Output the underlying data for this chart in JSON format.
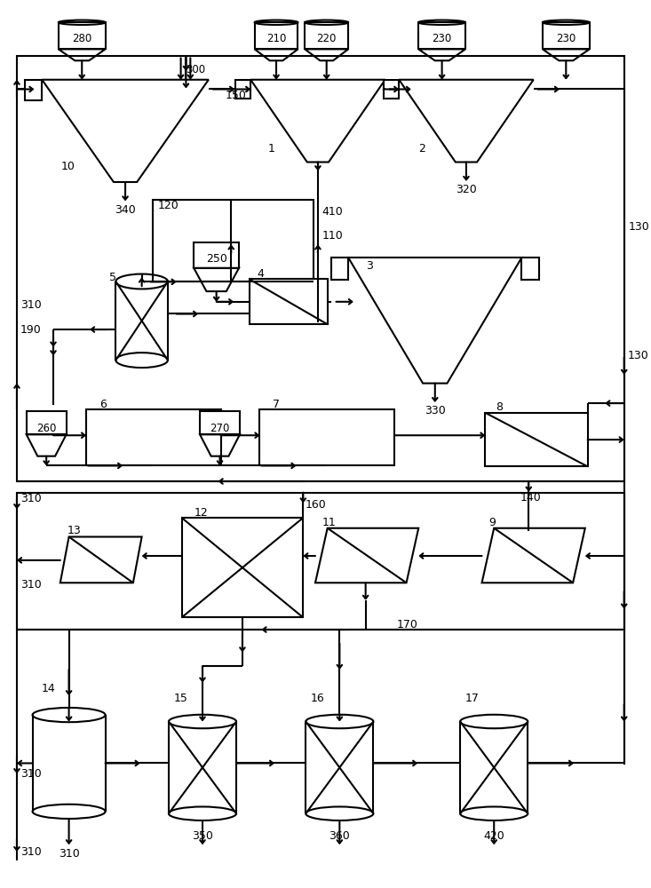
{
  "bg": "#ffffff",
  "lc": "#000000",
  "lw": 1.5,
  "fw": 7.33,
  "fh": 10.0
}
